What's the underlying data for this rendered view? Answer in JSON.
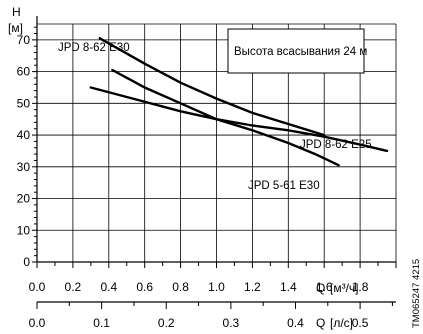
{
  "chart_data": {
    "type": "line",
    "title": "",
    "ylabel_symbol": "H",
    "ylabel_unit": "[м]",
    "xlabel_symbol": "Q",
    "xlabel_unit": "[м³/ч]",
    "x2label_symbol": "Q",
    "x2label_unit": "[л/с]",
    "legend_box": "Высота всасывания 24 м",
    "figure_code": "TM065247 4215",
    "xlim": [
      0.0,
      2.0
    ],
    "ylim": [
      0,
      75
    ],
    "grid": true,
    "x_ticks": [
      "0.0",
      "0.2",
      "0.4",
      "0.6",
      "0.8",
      "1.0",
      "1.2",
      "1.4",
      "1.6",
      "1.8"
    ],
    "y_ticks": [
      "0",
      "10",
      "20",
      "30",
      "40",
      "50",
      "60",
      "70"
    ],
    "x2_ticks": [
      "0.0",
      "0.1",
      "0.2",
      "0.3",
      "0.4",
      "0.5"
    ],
    "series": [
      {
        "name": "JPD 8-62 E30",
        "x": [
          0.35,
          0.6,
          0.8,
          1.0,
          1.2,
          1.4,
          1.6
        ],
        "y": [
          70.5,
          62.5,
          56.5,
          51.5,
          47.0,
          43.5,
          40.0
        ]
      },
      {
        "name": "JPD 8-62 E25",
        "x": [
          0.3,
          0.5,
          0.8,
          1.0,
          1.2,
          1.4,
          1.6,
          1.8,
          1.95
        ],
        "y": [
          55.0,
          52.0,
          47.5,
          45.0,
          43.0,
          41.5,
          39.5,
          37.0,
          35.0
        ]
      },
      {
        "name": "JPD 5-61 E30",
        "x": [
          0.42,
          0.6,
          0.8,
          1.0,
          1.2,
          1.4,
          1.55,
          1.68
        ],
        "y": [
          60.5,
          55.0,
          50.0,
          45.0,
          41.5,
          37.5,
          34.0,
          30.5
        ]
      }
    ]
  }
}
